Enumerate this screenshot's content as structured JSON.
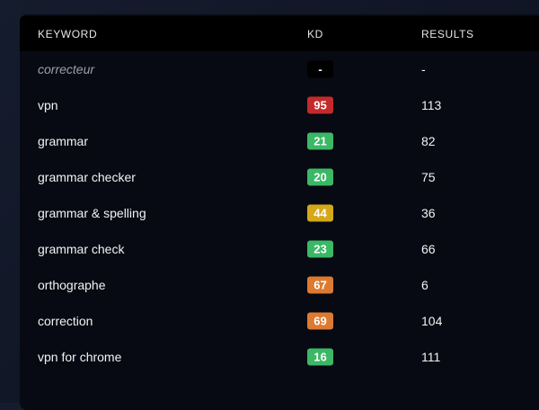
{
  "table": {
    "headers": {
      "keyword": "KEYWORD",
      "kd": "KD",
      "results": "RESULTS"
    },
    "rows": [
      {
        "keyword": "correcteur",
        "kd": "-",
        "results": "-",
        "kd_color": "#000000",
        "muted": true
      },
      {
        "keyword": "vpn",
        "kd": "95",
        "results": "113",
        "kd_color": "#c42a2a"
      },
      {
        "keyword": "grammar",
        "kd": "21",
        "results": "82",
        "kd_color": "#3bb866"
      },
      {
        "keyword": "grammar checker",
        "kd": "20",
        "results": "75",
        "kd_color": "#3bb866"
      },
      {
        "keyword": "grammar & spelling",
        "kd": "44",
        "results": "36",
        "kd_color": "#d4a819"
      },
      {
        "keyword": "grammar check",
        "kd": "23",
        "results": "66",
        "kd_color": "#3bb866"
      },
      {
        "keyword": "orthographe",
        "kd": "67",
        "results": "6",
        "kd_color": "#dd7a32"
      },
      {
        "keyword": "correction",
        "kd": "69",
        "results": "104",
        "kd_color": "#dd7a32"
      },
      {
        "keyword": "vpn for chrome",
        "kd": "16",
        "results": "111",
        "kd_color": "#3bb866"
      }
    ]
  }
}
